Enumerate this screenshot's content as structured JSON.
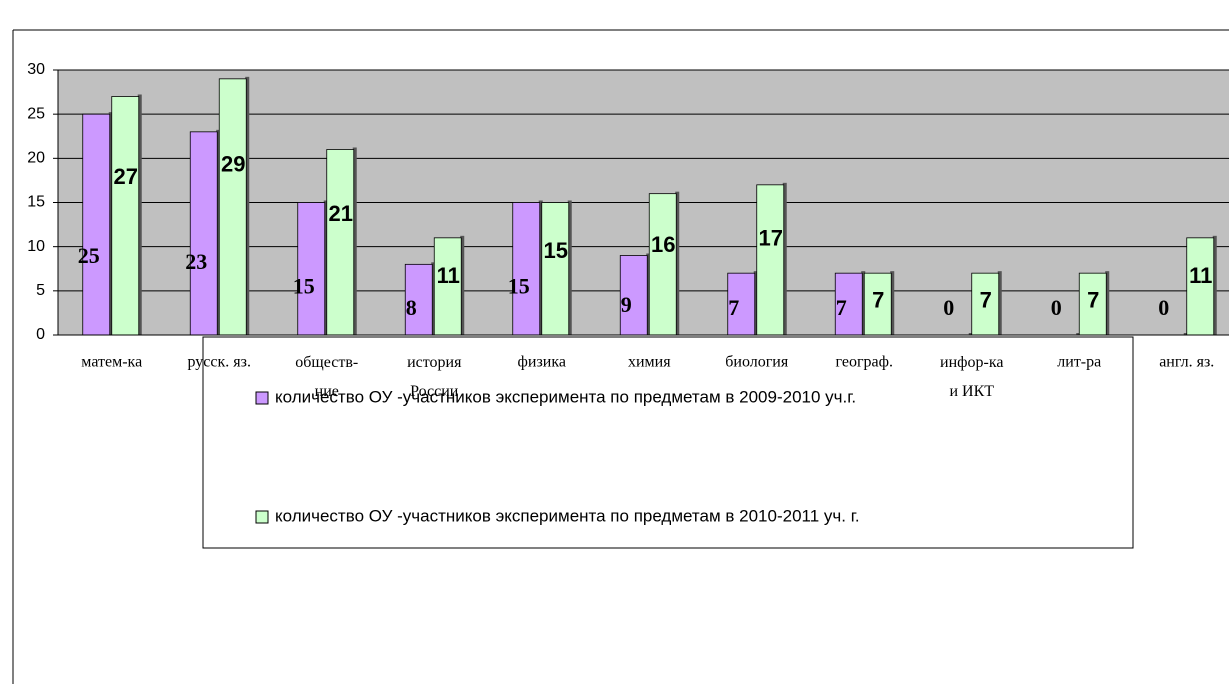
{
  "chart_data": {
    "type": "bar",
    "categories": [
      "матем-ка",
      "русск. яз.",
      "обществ-\nние",
      "история\nРоссии",
      "физика",
      "химия",
      "биология",
      "географ.",
      "инфор-ка\nи ИКТ",
      "лит-ра",
      "англ. яз."
    ],
    "series": [
      {
        "name": "количество ОУ -участников эксперимента по предметам в 2009-2010 уч.г.",
        "color": "#cc99ff",
        "values": [
          25,
          23,
          15,
          8,
          15,
          9,
          7,
          7,
          0,
          0,
          0
        ]
      },
      {
        "name": "количество ОУ -участников эксперимента по предметам в 2010-2011 уч. г.",
        "color": "#ccffcc",
        "values": [
          27,
          29,
          21,
          11,
          15,
          16,
          17,
          7,
          7,
          7,
          11
        ]
      }
    ],
    "ylim": [
      0,
      30
    ],
    "yticks": [
      0,
      5,
      10,
      15,
      20,
      25,
      30
    ],
    "grid": true
  }
}
